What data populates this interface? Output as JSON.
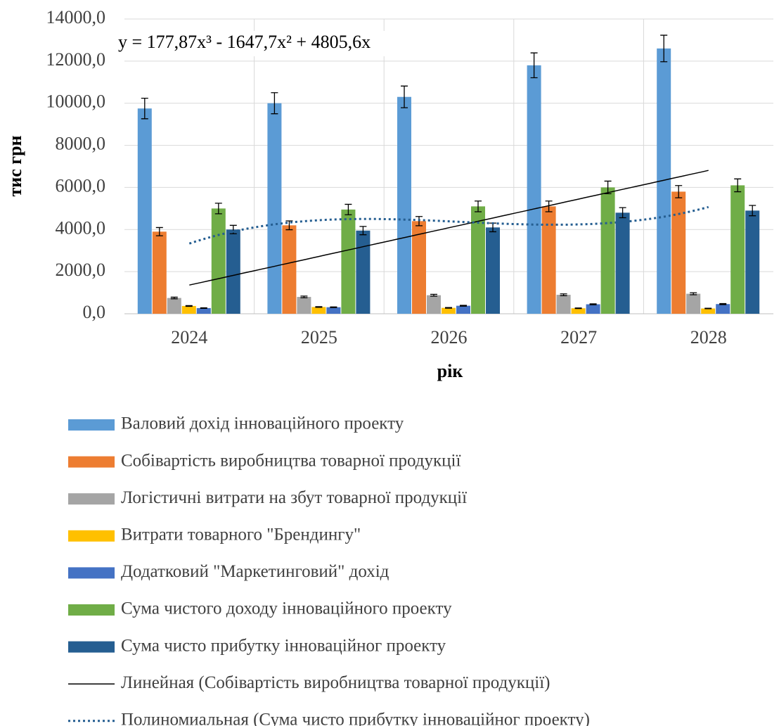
{
  "chart_data": {
    "type": "bar",
    "y_label": "тис грн",
    "x_label": "рік",
    "categories": [
      "2024",
      "2025",
      "2026",
      "2027",
      "2028"
    ],
    "series": [
      {
        "name": "Валовий дохід інноваційного проекту",
        "color": "#5b9bd5",
        "values": [
          9750,
          10000,
          10300,
          11800,
          12600
        ],
        "errors": [
          488,
          500,
          515,
          590,
          630
        ]
      },
      {
        "name": "Собівартість виробництва товарної продукції",
        "color": "#ed7d31",
        "values": [
          3900,
          4200,
          4400,
          5100,
          5800
        ],
        "errors": [
          195,
          210,
          220,
          255,
          290
        ]
      },
      {
        "name": "Логістичні витрати на збут товарної продукції",
        "color": "#a5a5a5",
        "values": [
          750,
          800,
          880,
          900,
          950
        ],
        "errors": [
          38,
          40,
          44,
          45,
          48
        ]
      },
      {
        "name": "Витрати товарного \"Брендингу\"",
        "color": "#ffc000",
        "values": [
          370,
          320,
          280,
          260,
          250
        ],
        "errors": [
          19,
          16,
          14,
          13,
          13
        ]
      },
      {
        "name": "Додатковий \"Маркетинговий\" дохід",
        "color": "#4472c4",
        "values": [
          270,
          310,
          380,
          450,
          460
        ],
        "errors": [
          14,
          16,
          19,
          23,
          23
        ]
      },
      {
        "name": "Сума чистого доходу інноваційного проекту",
        "color": "#70ad47",
        "values": [
          5000,
          4950,
          5100,
          6000,
          6100
        ],
        "errors": [
          250,
          248,
          255,
          300,
          305
        ]
      },
      {
        "name": "Сума чисто прибутку інноваційног проекту",
        "color": "#255e91",
        "values": [
          4000,
          3950,
          4100,
          4800,
          4900
        ],
        "errors": [
          200,
          198,
          205,
          240,
          245
        ]
      }
    ],
    "trendlines": [
      {
        "name": "Линейная (Собівартість виробництва товарної продукції)",
        "type": "linear",
        "series": 1,
        "color": "#000000",
        "dashed": false
      },
      {
        "name": "Полиномиальная (Сума чисто прибутку інноваційног проекту)",
        "type": "polynomial",
        "series": 6,
        "color": "#255e91",
        "dashed": true,
        "coefficients": [
          177.87,
          -1647.7,
          4805.6
        ],
        "equation": "y = 177,87x³ - 1647,7x² + 4805,6x"
      }
    ],
    "ylim": [
      0,
      14000
    ],
    "yticks": [
      {
        "value": 0,
        "label": "0,0"
      },
      {
        "value": 2000,
        "label": "2000,0"
      },
      {
        "value": 4000,
        "label": "4000,0"
      },
      {
        "value": 6000,
        "label": "6000,0"
      },
      {
        "value": 8000,
        "label": "8000,0"
      },
      {
        "value": 10000,
        "label": "10000,0"
      },
      {
        "value": 12000,
        "label": "12000,0"
      },
      {
        "value": 14000,
        "label": "14000,0"
      }
    ],
    "grid": true,
    "legend": "bottom"
  }
}
